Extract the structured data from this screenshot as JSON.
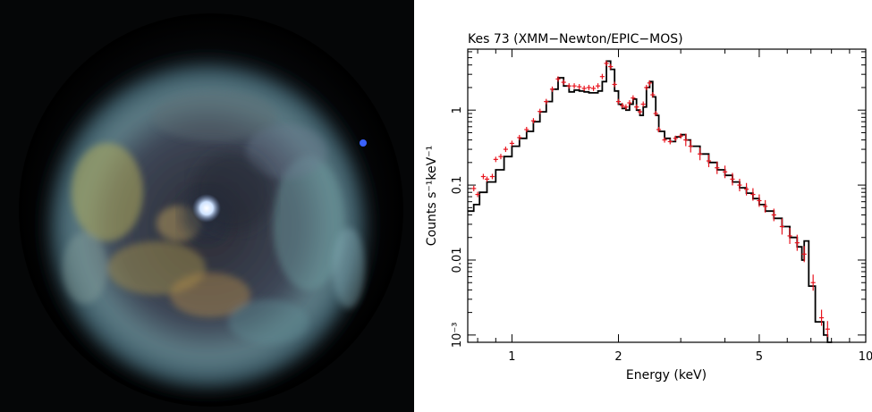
{
  "image": {
    "subject": "supernova-remnant-rgb-xray"
  },
  "chart_data": {
    "type": "line",
    "title": "Kes 73 (XMM−Newton/EPIC−MOS)",
    "xlabel": "Energy (keV)",
    "ylabel": "Counts s⁻¹keV⁻¹",
    "xscale": "log",
    "yscale": "log",
    "xlim": [
      0.75,
      10
    ],
    "ylim": [
      0.0008,
      6.5
    ],
    "xticks": [
      {
        "value": 1,
        "label": "1"
      },
      {
        "value": 2,
        "label": "2"
      },
      {
        "value": 5,
        "label": "5"
      },
      {
        "value": 10,
        "label": "10"
      }
    ],
    "yticks": [
      {
        "value": 0.001,
        "label": "10⁻³"
      },
      {
        "value": 0.01,
        "label": "0.01"
      },
      {
        "value": 0.1,
        "label": "0.1"
      },
      {
        "value": 1,
        "label": "1"
      }
    ],
    "series": [
      {
        "kind": "data",
        "color": "#e8141e",
        "points": [
          [
            0.78,
            0.09
          ],
          [
            0.8,
            0.075
          ],
          [
            0.83,
            0.13
          ],
          [
            0.85,
            0.12
          ],
          [
            0.88,
            0.13
          ],
          [
            0.9,
            0.22
          ],
          [
            0.93,
            0.24
          ],
          [
            0.96,
            0.3
          ],
          [
            1.0,
            0.36
          ],
          [
            1.05,
            0.43
          ],
          [
            1.1,
            0.55
          ],
          [
            1.15,
            0.72
          ],
          [
            1.2,
            0.96
          ],
          [
            1.25,
            1.3
          ],
          [
            1.3,
            1.9
          ],
          [
            1.35,
            2.6
          ],
          [
            1.4,
            2.35
          ],
          [
            1.45,
            2.1
          ],
          [
            1.5,
            2.1
          ],
          [
            1.55,
            2.05
          ],
          [
            1.6,
            1.95
          ],
          [
            1.65,
            2.0
          ],
          [
            1.7,
            1.95
          ],
          [
            1.75,
            2.1
          ],
          [
            1.8,
            2.8
          ],
          [
            1.85,
            4.2
          ],
          [
            1.9,
            3.8
          ],
          [
            1.95,
            2.2
          ],
          [
            2.0,
            1.3
          ],
          [
            2.05,
            1.15
          ],
          [
            2.1,
            1.1
          ],
          [
            2.15,
            1.25
          ],
          [
            2.2,
            1.45
          ],
          [
            2.25,
            1.1
          ],
          [
            2.3,
            0.95
          ],
          [
            2.35,
            1.2
          ],
          [
            2.4,
            2.0
          ],
          [
            2.45,
            2.3
          ],
          [
            2.5,
            1.6
          ],
          [
            2.55,
            0.9
          ],
          [
            2.6,
            0.55
          ],
          [
            2.7,
            0.4
          ],
          [
            2.8,
            0.38
          ],
          [
            2.9,
            0.42
          ],
          [
            3.0,
            0.45
          ],
          [
            3.1,
            0.4
          ],
          [
            3.2,
            0.33
          ],
          [
            3.4,
            0.26
          ],
          [
            3.6,
            0.21
          ],
          [
            3.8,
            0.17
          ],
          [
            4.0,
            0.15
          ],
          [
            4.2,
            0.12
          ],
          [
            4.4,
            0.1
          ],
          [
            4.6,
            0.088
          ],
          [
            4.8,
            0.075
          ],
          [
            5.0,
            0.062
          ],
          [
            5.2,
            0.052
          ],
          [
            5.5,
            0.04
          ],
          [
            5.8,
            0.028
          ],
          [
            6.1,
            0.021
          ],
          [
            6.4,
            0.017
          ],
          [
            6.7,
            0.012
          ],
          [
            7.1,
            0.005
          ],
          [
            7.5,
            0.0017
          ],
          [
            7.8,
            0.0012
          ]
        ]
      },
      {
        "kind": "model",
        "color": "#000000",
        "points": [
          [
            0.75,
            0.045
          ],
          [
            0.78,
            0.055
          ],
          [
            0.81,
            0.08
          ],
          [
            0.85,
            0.11
          ],
          [
            0.9,
            0.16
          ],
          [
            0.95,
            0.24
          ],
          [
            1.0,
            0.33
          ],
          [
            1.05,
            0.42
          ],
          [
            1.1,
            0.52
          ],
          [
            1.15,
            0.7
          ],
          [
            1.2,
            0.95
          ],
          [
            1.25,
            1.3
          ],
          [
            1.3,
            1.9
          ],
          [
            1.35,
            2.7
          ],
          [
            1.4,
            2.1
          ],
          [
            1.45,
            1.75
          ],
          [
            1.5,
            1.85
          ],
          [
            1.55,
            1.8
          ],
          [
            1.6,
            1.75
          ],
          [
            1.65,
            1.7
          ],
          [
            1.7,
            1.7
          ],
          [
            1.75,
            1.8
          ],
          [
            1.8,
            2.4
          ],
          [
            1.85,
            4.5
          ],
          [
            1.9,
            3.5
          ],
          [
            1.95,
            1.8
          ],
          [
            2.0,
            1.2
          ],
          [
            2.05,
            1.05
          ],
          [
            2.1,
            1.0
          ],
          [
            2.15,
            1.2
          ],
          [
            2.2,
            1.4
          ],
          [
            2.25,
            1.0
          ],
          [
            2.3,
            0.85
          ],
          [
            2.35,
            1.1
          ],
          [
            2.4,
            2.0
          ],
          [
            2.45,
            2.4
          ],
          [
            2.5,
            1.5
          ],
          [
            2.55,
            0.85
          ],
          [
            2.6,
            0.52
          ],
          [
            2.7,
            0.42
          ],
          [
            2.8,
            0.38
          ],
          [
            2.9,
            0.44
          ],
          [
            3.0,
            0.47
          ],
          [
            3.1,
            0.4
          ],
          [
            3.2,
            0.33
          ],
          [
            3.4,
            0.26
          ],
          [
            3.6,
            0.2
          ],
          [
            3.8,
            0.16
          ],
          [
            4.0,
            0.135
          ],
          [
            4.2,
            0.11
          ],
          [
            4.4,
            0.092
          ],
          [
            4.6,
            0.078
          ],
          [
            4.8,
            0.066
          ],
          [
            5.0,
            0.055
          ],
          [
            5.2,
            0.045
          ],
          [
            5.5,
            0.036
          ],
          [
            5.8,
            0.028
          ],
          [
            6.1,
            0.02
          ],
          [
            6.4,
            0.015
          ],
          [
            6.6,
            0.01
          ],
          [
            6.7,
            0.018
          ],
          [
            6.9,
            0.0045
          ],
          [
            7.2,
            0.0015
          ],
          [
            7.6,
            0.001
          ],
          [
            7.8,
            0.0008
          ]
        ]
      }
    ]
  }
}
